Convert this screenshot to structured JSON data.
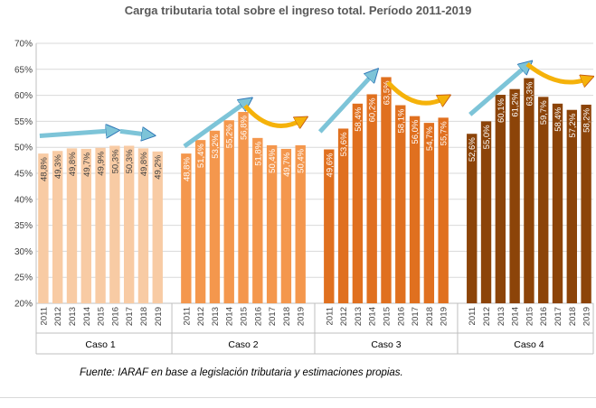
{
  "title": "Carga tributaria total sobre el ingreso total. Período 2011-2019",
  "source": "Fuente: IARAF en base a legislación tributaria y estimaciones propias.",
  "colors": {
    "Caso 1": "#f8cba4",
    "Caso 2": "#f4974d",
    "Caso 3": "#e0701f",
    "Caso 4": "#8c4409",
    "trend_arrow": "#7dc4d8",
    "turn_arrow": "#f5b20a"
  },
  "chart_data": {
    "type": "bar",
    "title": "Carga tributaria total sobre el ingreso total. Período 2011-2019",
    "xlabel": "",
    "ylabel": "",
    "ylim": [
      20,
      70
    ],
    "yticks": [
      "20%",
      "25%",
      "30%",
      "35%",
      "40%",
      "45%",
      "50%",
      "55%",
      "60%",
      "65%",
      "70%"
    ],
    "grid": true,
    "legend": "none",
    "years": [
      "2011",
      "2012",
      "2013",
      "2014",
      "2015",
      "2016",
      "2017",
      "2018",
      "2019"
    ],
    "groups": [
      {
        "name": "Caso 1",
        "values": [
          48.8,
          49.3,
          49.8,
          49.7,
          49.9,
          50.3,
          50.3,
          49.8,
          49.2
        ],
        "labels": [
          "48,8%",
          "49,3%",
          "49,8%",
          "49,7%",
          "49,9%",
          "50,3%",
          "50,3%",
          "49,8%",
          "49,2%"
        ]
      },
      {
        "name": "Caso 2",
        "values": [
          48.8,
          51.4,
          53.2,
          55.2,
          56.8,
          51.8,
          50.4,
          49.7,
          50.4
        ],
        "labels": [
          "48,8%",
          "51,4%",
          "53,2%",
          "55,2%",
          "56,8%",
          "51,8%",
          "50,4%",
          "49,7%",
          "50,4%"
        ]
      },
      {
        "name": "Caso 3",
        "values": [
          49.6,
          53.6,
          58.4,
          60.2,
          63.5,
          58.1,
          56.0,
          54.7,
          55.7
        ],
        "labels": [
          "49,6%",
          "53,6%",
          "58,4%",
          "60,2%",
          "63,5%",
          "58,1%",
          "56,0%",
          "54,7%",
          "55,7%"
        ]
      },
      {
        "name": "Caso 4",
        "values": [
          52.6,
          55.0,
          60.1,
          61.2,
          63.3,
          59.7,
          58.4,
          57.2,
          58.2
        ],
        "labels": [
          "52,6%",
          "55,0%",
          "60,1%",
          "61,2%",
          "63,3%",
          "59,7%",
          "58,4%",
          "57,2%",
          "58,2%"
        ]
      }
    ]
  }
}
